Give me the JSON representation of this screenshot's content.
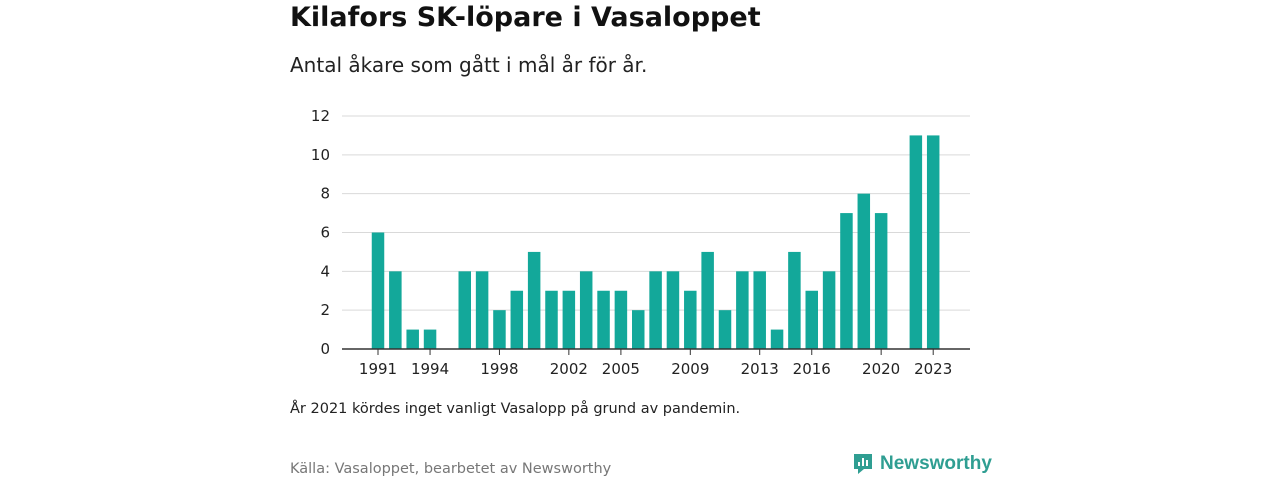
{
  "header": {
    "title": "Kilafors SK-löpare i Vasaloppet",
    "subtitle": "Antal åkare som gått i mål år för år."
  },
  "footer": {
    "note": "År 2021 kördes inget vanligt Vasalopp på grund av pandemin.",
    "source": "Källa: Vasaloppet, bearbetet av Newsworthy",
    "brand": "Newsworthy"
  },
  "colors": {
    "bar": "#13a89a",
    "brand": "#2f9e92",
    "grid": "#d9d9d9",
    "axis": "#333333"
  },
  "icons": {
    "brand_logo": "newsworthy-logo-icon"
  },
  "chart_data": {
    "type": "bar",
    "title": "Kilafors SK-löpare i Vasaloppet",
    "subtitle": "Antal åkare som gått i mål år för år.",
    "xlabel": "",
    "ylabel": "",
    "ylim": [
      0,
      12
    ],
    "yticks": [
      0,
      2,
      4,
      6,
      8,
      10,
      12
    ],
    "xticks": [
      "1991",
      "1994",
      "1998",
      "2002",
      "2005",
      "2009",
      "2013",
      "2016",
      "2020",
      "2023"
    ],
    "grid": true,
    "categories": [
      "1991",
      "1992",
      "1993",
      "1994",
      "1995",
      "1996",
      "1997",
      "1998",
      "1999",
      "2000",
      "2001",
      "2002",
      "2003",
      "2004",
      "2005",
      "2006",
      "2007",
      "2008",
      "2009",
      "2010",
      "2011",
      "2012",
      "2013",
      "2014",
      "2015",
      "2016",
      "2017",
      "2018",
      "2019",
      "2020",
      "2021",
      "2022",
      "2023"
    ],
    "values": [
      6,
      4,
      1,
      1,
      0,
      4,
      4,
      2,
      3,
      5,
      3,
      3,
      4,
      3,
      3,
      2,
      4,
      4,
      3,
      5,
      2,
      4,
      4,
      1,
      5,
      3,
      4,
      7,
      8,
      7,
      0,
      11,
      11
    ]
  }
}
